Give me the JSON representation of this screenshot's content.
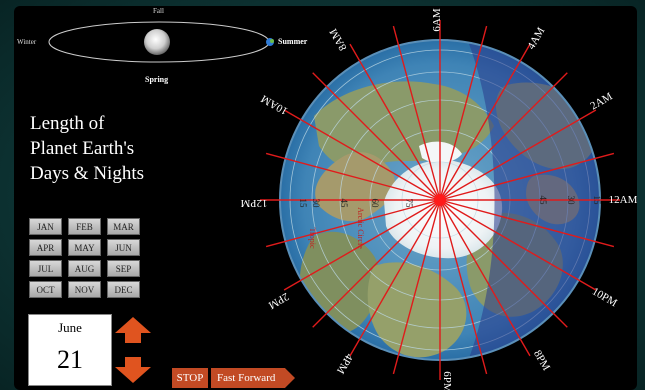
{
  "orbit": {
    "fall": "Fall",
    "winter": "Winter",
    "summer": "Summer",
    "spring": "Spring"
  },
  "title_lines": [
    "Length of",
    "Planet Earth's",
    "Days & Nights"
  ],
  "months": [
    "JAN",
    "FEB",
    "MAR",
    "APR",
    "MAY",
    "JUN",
    "JUL",
    "AUG",
    "SEP",
    "OCT",
    "NOV",
    "DEC"
  ],
  "date": {
    "month": "June",
    "day": "21"
  },
  "controls": {
    "stop": "STOP",
    "fast_forward": "Fast Forward"
  },
  "clock_labels": {
    "six_am": "6AM",
    "four_am": "4AM",
    "two_am": "2AM",
    "twelve_am": "12AM",
    "ten_pm": "10PM",
    "eight_pm": "8PM",
    "six_pm": "6PM",
    "four_pm": "4PM",
    "two_pm": "2PM",
    "twelve_pm": "12PM",
    "ten_am": "10AM",
    "eight_am": "8AM"
  },
  "latitude_labels": [
    "15",
    "30",
    "45",
    "60",
    "75"
  ],
  "latitude_labels_right": [
    "15",
    "30",
    "45"
  ],
  "region_labels": {
    "tropic": "Tropic",
    "arctic": "Arctic Circle"
  },
  "colors": {
    "accent": "#c24a24",
    "meridian": "#e01b1b",
    "night_shade": "#2a3a8c",
    "frame": "#0f3838"
  }
}
